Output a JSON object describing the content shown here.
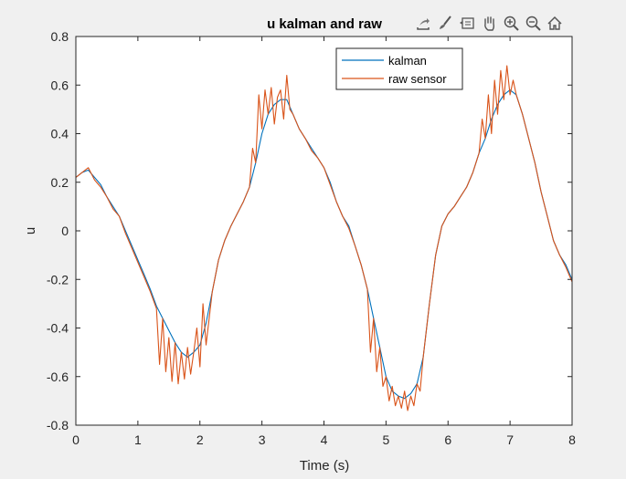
{
  "toolbar": {
    "icons": [
      "export-icon",
      "brush-icon",
      "data-tips-icon",
      "pan-hand-icon",
      "zoom-in-icon",
      "zoom-out-icon",
      "home-icon"
    ]
  },
  "colors": {
    "figure_bg": "#f0f0f0",
    "axes_bg": "#ffffff",
    "kalman": "#0072bd",
    "raw": "#d95319"
  },
  "chart_data": {
    "type": "line",
    "title": "u kalman and raw",
    "xlabel": "Time (s)",
    "ylabel": "u",
    "xlim": [
      0,
      8
    ],
    "ylim": [
      -0.8,
      0.8
    ],
    "xticks": [
      0,
      1,
      2,
      3,
      4,
      5,
      6,
      7,
      8
    ],
    "yticks": [
      -0.8,
      -0.6,
      -0.4,
      -0.2,
      0,
      0.2,
      0.4,
      0.6,
      0.8
    ],
    "xtick_labels": [
      "0",
      "1",
      "2",
      "3",
      "4",
      "5",
      "6",
      "7",
      "8"
    ],
    "ytick_labels": [
      "-0.8",
      "-0.6",
      "-0.4",
      "-0.2",
      "0",
      "0.2",
      "0.4",
      "0.6",
      "0.8"
    ],
    "grid": false,
    "legend_position": "top-right",
    "series": [
      {
        "name": "kalman",
        "x": [
          0,
          0.1,
          0.2,
          0.3,
          0.4,
          0.5,
          0.6,
          0.7,
          0.8,
          0.9,
          1.0,
          1.1,
          1.2,
          1.3,
          1.4,
          1.5,
          1.6,
          1.7,
          1.8,
          1.9,
          2.0,
          2.1,
          2.2,
          2.3,
          2.4,
          2.5,
          2.6,
          2.7,
          2.8,
          2.9,
          3.0,
          3.1,
          3.2,
          3.3,
          3.4,
          3.5,
          3.6,
          3.7,
          3.8,
          3.9,
          4.0,
          4.1,
          4.2,
          4.3,
          4.4,
          4.5,
          4.6,
          4.7,
          4.8,
          4.9,
          5.0,
          5.1,
          5.2,
          5.3,
          5.4,
          5.5,
          5.6,
          5.7,
          5.8,
          5.9,
          6.0,
          6.1,
          6.2,
          6.3,
          6.4,
          6.5,
          6.6,
          6.7,
          6.8,
          6.9,
          7.0,
          7.1,
          7.2,
          7.3,
          7.4,
          7.5,
          7.6,
          7.7,
          7.8,
          7.9,
          8.0
        ],
        "y": [
          0.22,
          0.24,
          0.25,
          0.22,
          0.19,
          0.14,
          0.1,
          0.06,
          0.0,
          -0.06,
          -0.12,
          -0.18,
          -0.24,
          -0.31,
          -0.36,
          -0.41,
          -0.46,
          -0.5,
          -0.52,
          -0.5,
          -0.47,
          -0.38,
          -0.25,
          -0.12,
          -0.04,
          0.02,
          0.07,
          0.12,
          0.18,
          0.28,
          0.4,
          0.48,
          0.52,
          0.54,
          0.54,
          0.48,
          0.42,
          0.38,
          0.34,
          0.3,
          0.26,
          0.2,
          0.12,
          0.06,
          0.02,
          -0.06,
          -0.14,
          -0.24,
          -0.36,
          -0.48,
          -0.6,
          -0.66,
          -0.68,
          -0.69,
          -0.67,
          -0.63,
          -0.52,
          -0.3,
          -0.1,
          0.02,
          0.07,
          0.1,
          0.14,
          0.18,
          0.24,
          0.32,
          0.38,
          0.46,
          0.52,
          0.56,
          0.58,
          0.56,
          0.48,
          0.38,
          0.28,
          0.16,
          0.06,
          -0.04,
          -0.1,
          -0.14,
          -0.2
        ]
      },
      {
        "name": "raw sensor",
        "x": [
          0,
          0.1,
          0.2,
          0.3,
          0.4,
          0.5,
          0.6,
          0.7,
          0.8,
          0.9,
          1.0,
          1.1,
          1.2,
          1.3,
          1.35,
          1.4,
          1.45,
          1.5,
          1.55,
          1.6,
          1.65,
          1.7,
          1.75,
          1.8,
          1.85,
          1.9,
          1.95,
          2.0,
          2.05,
          2.1,
          2.2,
          2.3,
          2.4,
          2.5,
          2.6,
          2.7,
          2.8,
          2.85,
          2.9,
          2.95,
          3.0,
          3.05,
          3.1,
          3.15,
          3.2,
          3.25,
          3.3,
          3.35,
          3.4,
          3.45,
          3.5,
          3.6,
          3.7,
          3.8,
          3.9,
          4.0,
          4.1,
          4.2,
          4.3,
          4.4,
          4.5,
          4.6,
          4.7,
          4.75,
          4.8,
          4.85,
          4.9,
          4.95,
          5.0,
          5.05,
          5.1,
          5.15,
          5.2,
          5.25,
          5.3,
          5.35,
          5.4,
          5.45,
          5.5,
          5.55,
          5.6,
          5.7,
          5.8,
          5.9,
          6.0,
          6.1,
          6.2,
          6.3,
          6.4,
          6.5,
          6.55,
          6.6,
          6.65,
          6.7,
          6.75,
          6.8,
          6.85,
          6.9,
          6.95,
          7.0,
          7.05,
          7.1,
          7.2,
          7.3,
          7.4,
          7.5,
          7.6,
          7.7,
          7.8,
          7.9,
          8.0
        ],
        "y": [
          0.22,
          0.24,
          0.26,
          0.21,
          0.18,
          0.14,
          0.09,
          0.06,
          -0.01,
          -0.07,
          -0.13,
          -0.19,
          -0.25,
          -0.32,
          -0.55,
          -0.36,
          -0.58,
          -0.44,
          -0.62,
          -0.46,
          -0.63,
          -0.5,
          -0.61,
          -0.48,
          -0.59,
          -0.5,
          -0.4,
          -0.56,
          -0.3,
          -0.47,
          -0.25,
          -0.12,
          -0.04,
          0.02,
          0.07,
          0.12,
          0.18,
          0.34,
          0.28,
          0.56,
          0.42,
          0.58,
          0.48,
          0.59,
          0.44,
          0.55,
          0.58,
          0.46,
          0.64,
          0.5,
          0.48,
          0.42,
          0.38,
          0.33,
          0.3,
          0.26,
          0.19,
          0.12,
          0.06,
          0.01,
          -0.06,
          -0.14,
          -0.24,
          -0.5,
          -0.36,
          -0.58,
          -0.48,
          -0.64,
          -0.6,
          -0.7,
          -0.64,
          -0.72,
          -0.68,
          -0.73,
          -0.66,
          -0.74,
          -0.68,
          -0.72,
          -0.63,
          -0.66,
          -0.52,
          -0.3,
          -0.1,
          0.02,
          0.07,
          0.1,
          0.14,
          0.18,
          0.24,
          0.32,
          0.46,
          0.38,
          0.56,
          0.4,
          0.62,
          0.48,
          0.66,
          0.54,
          0.68,
          0.56,
          0.62,
          0.56,
          0.48,
          0.38,
          0.28,
          0.16,
          0.06,
          -0.04,
          -0.1,
          -0.15,
          -0.21
        ]
      }
    ]
  }
}
